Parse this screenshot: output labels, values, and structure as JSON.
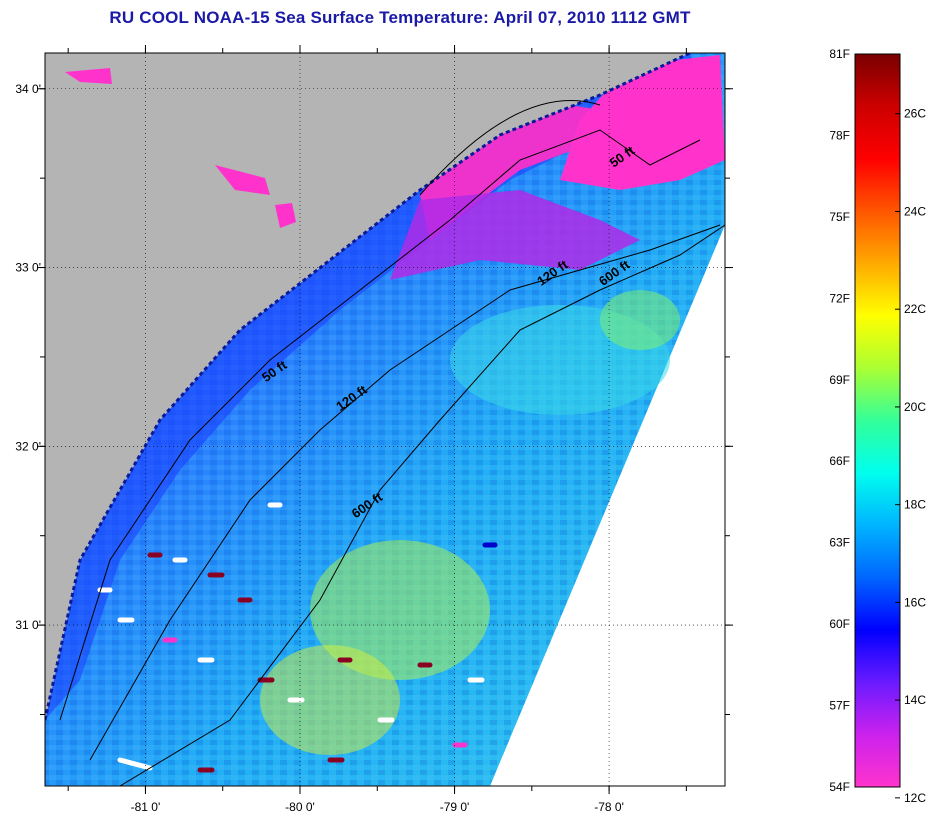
{
  "title": "RU COOL  NOAA-15  Sea Surface Temperature:  April 07, 2010 1112 GMT",
  "map": {
    "lon_range": [
      -81.65,
      -77.25
    ],
    "lat_range": [
      30.1,
      34.2
    ],
    "longitude_ticks": [
      {
        "value": -81,
        "label": "-81 0'"
      },
      {
        "value": -80,
        "label": "-80 0'"
      },
      {
        "value": -79,
        "label": "-79 0'"
      },
      {
        "value": -78,
        "label": "-78 0'"
      }
    ],
    "latitude_ticks": [
      {
        "value": 34,
        "label": "34 0'"
      },
      {
        "value": 33,
        "label": "33 0'"
      },
      {
        "value": 32,
        "label": "32 0'"
      },
      {
        "value": 31,
        "label": "31 0'"
      }
    ],
    "grid": "dotted",
    "land_color": "#b4b4b4",
    "no_data_color": "#ffffff",
    "contour_labels": [
      {
        "text": "50 ft",
        "lon": -77.9,
        "lat": 33.6
      },
      {
        "text": "120 ft",
        "lon": -78.35,
        "lat": 32.95
      },
      {
        "text": "600 ft",
        "lon": -77.95,
        "lat": 32.95
      },
      {
        "text": "50 ft",
        "lon": -80.15,
        "lat": 32.4
      },
      {
        "text": "120 ft",
        "lon": -79.65,
        "lat": 32.25
      },
      {
        "text": "600 ft",
        "lon": -79.55,
        "lat": 31.65
      }
    ]
  },
  "colorbar": {
    "fahrenheit_labels": [
      "81F",
      "78F",
      "75F",
      "72F",
      "69F",
      "66F",
      "63F",
      "60F",
      "57F",
      "54F"
    ],
    "celsius_labels": [
      "26C",
      "24C",
      "22C",
      "20C",
      "18C",
      "16C",
      "14C",
      "12C"
    ],
    "fahrenheit_values": [
      81,
      78,
      75,
      72,
      69,
      66,
      63,
      60,
      57,
      54
    ],
    "celsius_values": [
      26,
      24,
      22,
      20,
      18,
      16,
      14,
      12
    ],
    "range_f": [
      54,
      81
    ],
    "colors_bottom_to_top": [
      "#ff33cc",
      "#cc22ee",
      "#6a1aff",
      "#0000ff",
      "#0066ff",
      "#00b4ff",
      "#00ffee",
      "#33ff99",
      "#aaff33",
      "#ffff00",
      "#ffaa00",
      "#ff5500",
      "#ff0000",
      "#cc0000",
      "#7a0000"
    ]
  }
}
